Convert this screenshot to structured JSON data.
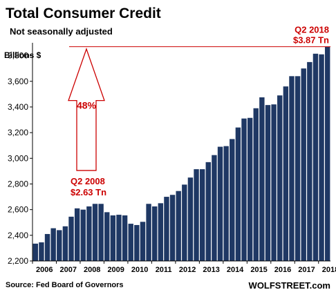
{
  "chart_data": {
    "type": "bar",
    "title": "Total Consumer Credit",
    "subtitle": "Not seasonally adjusted",
    "ylabel": "Billions $",
    "xlabel": "",
    "ylim": [
      2200,
      3900
    ],
    "yticks": [
      2200,
      2400,
      2600,
      2800,
      3000,
      3200,
      3400,
      3600,
      3800
    ],
    "ytick_labels": [
      "2,200",
      "2,400",
      "2,600",
      "2,800",
      "3,000",
      "3,200",
      "3,400",
      "3,600",
      "3,800"
    ],
    "xtick_labels": [
      "2006",
      "2007",
      "2008",
      "2009",
      "2010",
      "2011",
      "2012",
      "2013",
      "2014",
      "2015",
      "2016",
      "2017",
      "2018"
    ],
    "categories": [
      "Q1 2006",
      "Q2 2006",
      "Q3 2006",
      "Q4 2006",
      "Q1 2007",
      "Q2 2007",
      "Q3 2007",
      "Q4 2007",
      "Q1 2008",
      "Q2 2008",
      "Q3 2008",
      "Q4 2008",
      "Q1 2009",
      "Q2 2009",
      "Q3 2009",
      "Q4 2009",
      "Q1 2010",
      "Q2 2010",
      "Q3 2010",
      "Q4 2010",
      "Q1 2011",
      "Q2 2011",
      "Q3 2011",
      "Q4 2011",
      "Q1 2012",
      "Q2 2012",
      "Q3 2012",
      "Q4 2012",
      "Q1 2013",
      "Q2 2013",
      "Q3 2013",
      "Q4 2013",
      "Q1 2014",
      "Q2 2014",
      "Q3 2014",
      "Q4 2014",
      "Q1 2015",
      "Q2 2015",
      "Q3 2015",
      "Q4 2015",
      "Q1 2016",
      "Q2 2016",
      "Q3 2016",
      "Q4 2016",
      "Q1 2017",
      "Q2 2017",
      "Q3 2017",
      "Q4 2017",
      "Q1 2018",
      "Q2 2018"
    ],
    "values": [
      2335,
      2345,
      2410,
      2455,
      2440,
      2470,
      2545,
      2610,
      2600,
      2625,
      2645,
      2645,
      2580,
      2555,
      2560,
      2555,
      2490,
      2480,
      2505,
      2645,
      2625,
      2650,
      2700,
      2715,
      2745,
      2795,
      2850,
      2915,
      2915,
      2970,
      3025,
      3090,
      3095,
      3150,
      3240,
      3310,
      3315,
      3390,
      3475,
      3415,
      3420,
      3490,
      3560,
      3640,
      3640,
      3700,
      3750,
      3815,
      3810,
      3870
    ],
    "bar_color": "#1f3864",
    "grid": false,
    "legend": "none",
    "annotations": {
      "reference_line_value": 3870,
      "reference_line_color": "#cc0000",
      "peak_label_line1": "Q2 2018",
      "peak_label_line2": "$3.87 Tn",
      "start_label_line1": "Q2 2008",
      "start_label_line2": "$2.63 Tn",
      "start_value": 2625,
      "arrow_label": "48%",
      "arrow_top_value": 3830,
      "arrow_bottom_value": 2905,
      "label_color": "#cc0000"
    }
  },
  "footer": {
    "source": "Source: Fed Board of Governors",
    "brand": "WOLFSTREET.com"
  }
}
